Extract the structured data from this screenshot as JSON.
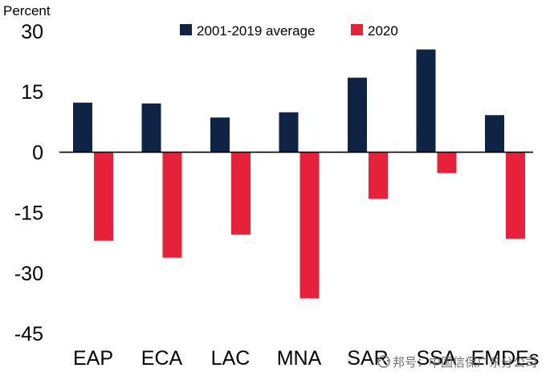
{
  "chart_data": {
    "type": "bar",
    "unit_label": "Percent",
    "categories": [
      "EAP",
      "ECA",
      "LAC",
      "MNA",
      "SAR",
      "SSA",
      "EMDEs"
    ],
    "series": [
      {
        "name": "2001-2019 average",
        "color": "#0f2344",
        "values": [
          12.3,
          12.1,
          8.6,
          9.9,
          18.5,
          25.5,
          9.2
        ]
      },
      {
        "name": "2020",
        "color": "#e8213a",
        "values": [
          -22,
          -26.2,
          -20.5,
          -36.3,
          -11.6,
          -5.2,
          -21.5
        ]
      }
    ],
    "ylim": [
      -45,
      30
    ],
    "yticks": [
      "30",
      "15",
      "0",
      "-15",
      "-30",
      "-45"
    ],
    "grid": false,
    "legend_position": "top"
  },
  "watermark": {
    "text": "邦号：中国信保广东分公司",
    "icon": "wechat-icon"
  }
}
